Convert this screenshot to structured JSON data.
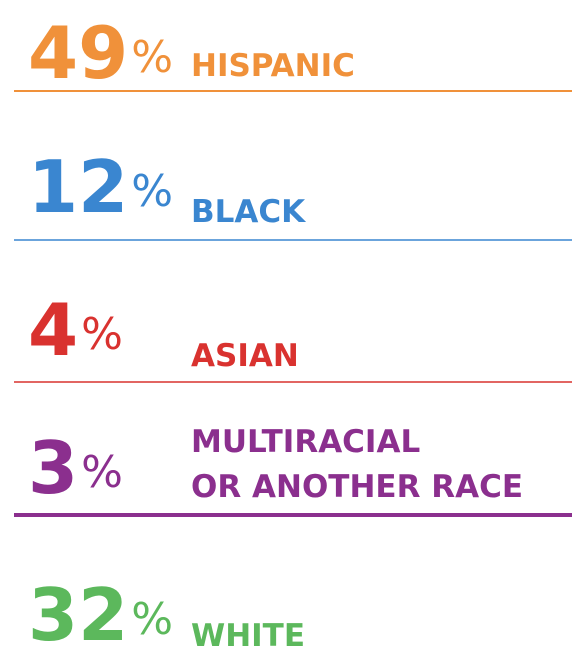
{
  "items": [
    {
      "value": 49,
      "unit": "%",
      "label": [
        "HISPANIC"
      ],
      "color": "#f0913a"
    },
    {
      "value": 12,
      "unit": "%",
      "label": [
        "BLACK"
      ],
      "color": "#3a86d0"
    },
    {
      "value": 4,
      "unit": "%",
      "label": [
        "ASIAN"
      ],
      "color": "#d9322f"
    },
    {
      "value": 3,
      "unit": "%",
      "label": [
        "MULTIRACIAL",
        "OR ANOTHER RACE"
      ],
      "color": "#8b2f8e"
    },
    {
      "value": 32,
      "unit": "%",
      "label": [
        "WHITE"
      ],
      "color": "#5cb85c"
    }
  ]
}
